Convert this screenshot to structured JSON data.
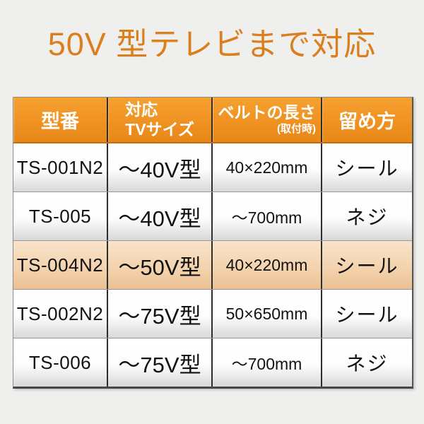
{
  "title": "50V 型テレビまで対応",
  "colors": {
    "page_background": "#efefed",
    "title_orange": "#db7e1e",
    "header_orange": "#ef9222",
    "header_text": "#ffffff",
    "highlight_row": "#f3d2ac",
    "body_text": "#121212",
    "divider": "#2d2d2d"
  },
  "table": {
    "headers": {
      "model": "型番",
      "tv_size_line1": "対応",
      "tv_size_line2": "TVサイズ",
      "belt_length": "ベルトの長さ",
      "belt_length_note": "(取付時)",
      "fastening": "留め方"
    },
    "rows": [
      {
        "model": "TS-001N2",
        "tv_size": "～40V型",
        "belt_length": "40×220mm",
        "fastening": "シール",
        "highlighted": false
      },
      {
        "model": "TS-005",
        "tv_size": "～40V型",
        "belt_length": "～700mm",
        "fastening": "ネジ",
        "highlighted": false
      },
      {
        "model": "TS-004N2",
        "tv_size": "～50V型",
        "belt_length": "40×220mm",
        "fastening": "シール",
        "highlighted": true
      },
      {
        "model": "TS-002N2",
        "tv_size": "～75V型",
        "belt_length": "50×650mm",
        "fastening": "シール",
        "highlighted": false
      },
      {
        "model": "TS-006",
        "tv_size": "～75V型",
        "belt_length": "～700mm",
        "fastening": "ネジ",
        "highlighted": false
      }
    ]
  }
}
